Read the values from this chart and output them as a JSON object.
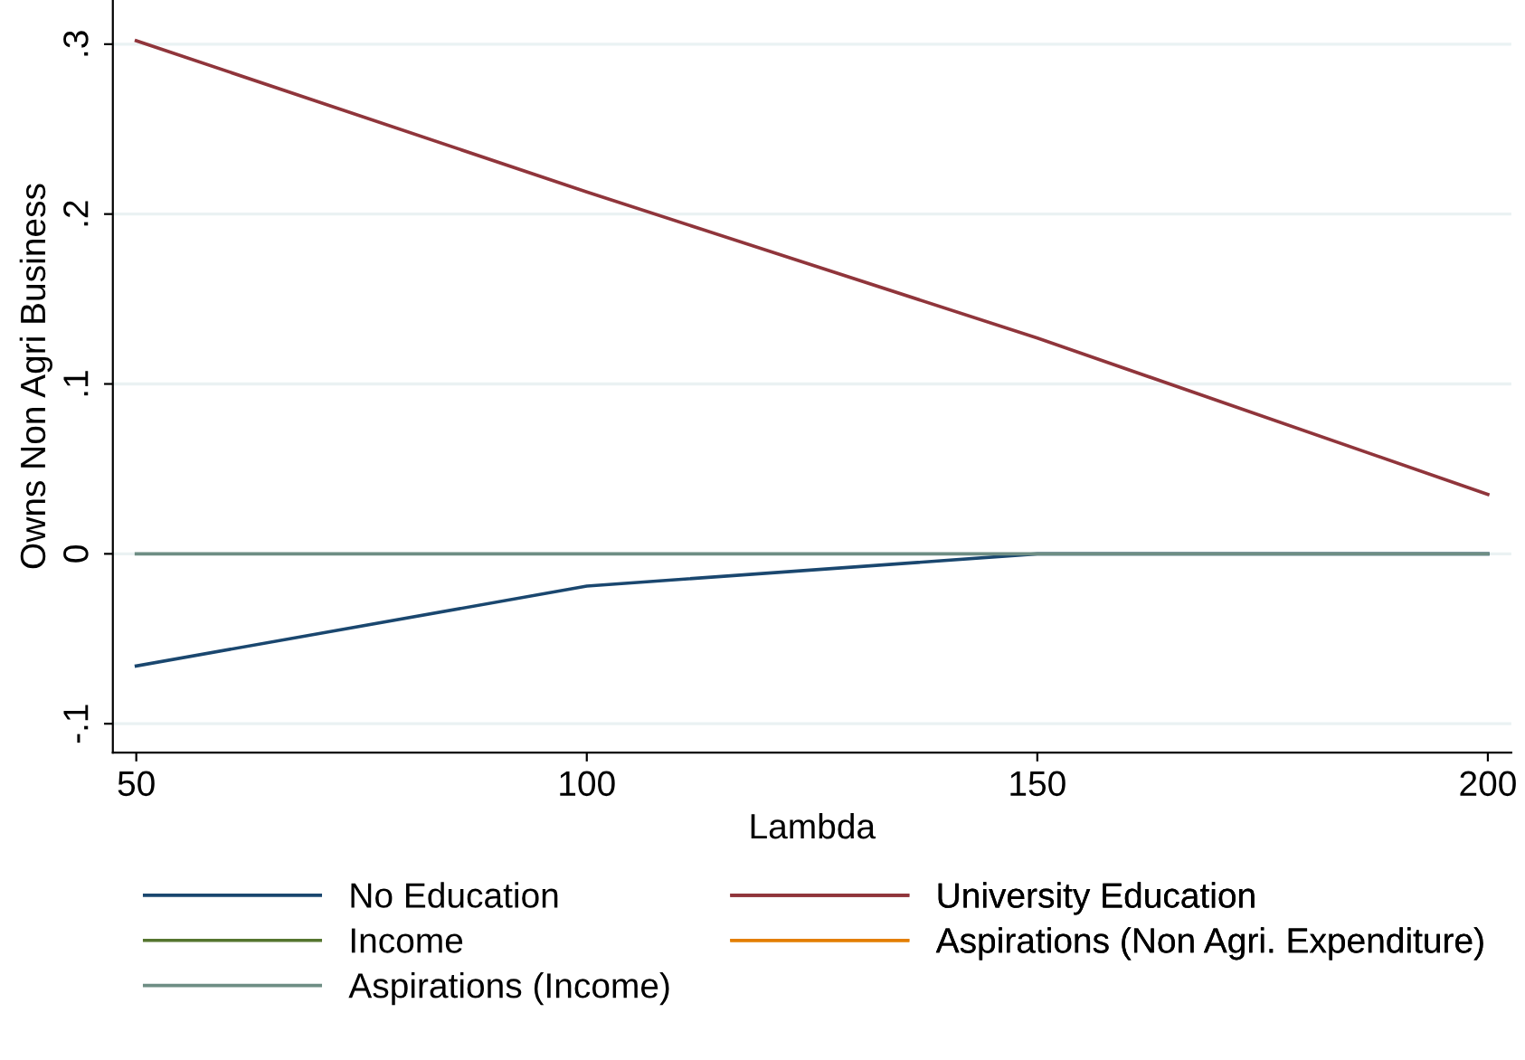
{
  "chart_data": {
    "type": "line",
    "xlabel": "Lambda",
    "ylabel": "Owns Non Agri Business",
    "x": [
      50,
      100,
      150,
      200
    ],
    "series": [
      {
        "name": "No Education",
        "color": "#1a476f",
        "values": [
          -0.066,
          -0.019,
          0,
          0
        ]
      },
      {
        "name": "University Education",
        "color": "#90353b",
        "values": [
          0.302,
          0.213,
          0.127,
          0.035
        ]
      },
      {
        "name": "Income",
        "color": "#55752f",
        "values": [
          null,
          null,
          null,
          null
        ]
      },
      {
        "name": "Aspirations (Non Agri. Expenditure)",
        "color": "#e37e00",
        "values": [
          null,
          null,
          null,
          null
        ]
      },
      {
        "name": "Aspirations (Income)",
        "color": "#6e8e84",
        "values": [
          0,
          0,
          0,
          0
        ]
      }
    ],
    "xlim": [
      47.4,
      202.6
    ],
    "xticks": [
      50,
      100,
      150,
      200
    ],
    "ylim": [
      -0.117,
      0.326
    ],
    "yticks": [
      {
        "value": -0.1,
        "label": "-.1"
      },
      0,
      {
        "value": 0.1,
        "label": ".1"
      },
      {
        "value": 0.2,
        "label": ".2"
      },
      {
        "value": 0.3,
        "label": ".3"
      }
    ],
    "grid": "y",
    "legend": "bottom",
    "marker": "none",
    "line_style": "solid"
  }
}
